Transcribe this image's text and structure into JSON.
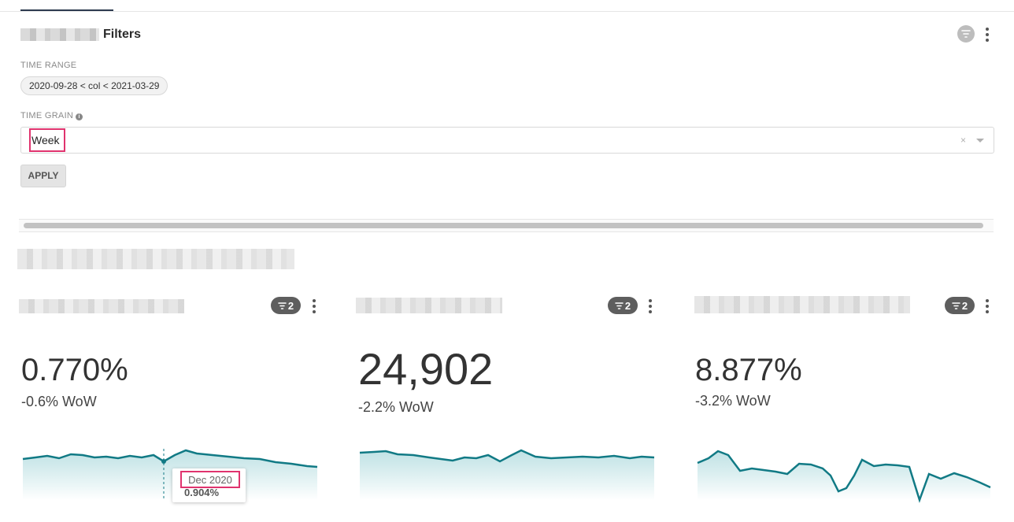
{
  "filters": {
    "title": "Filters",
    "time_range_label": "TIME RANGE",
    "time_range_value": "2020-09-28 < col < 2021-03-29",
    "time_grain_label": "TIME GRAIN",
    "time_grain_value": "Week",
    "clear_symbol": "×",
    "apply_label": "APPLY"
  },
  "cards": [
    {
      "filter_count": "2",
      "value": "0.770%",
      "delta": "-0.6% WoW",
      "tooltip": {
        "date": "Dec 2020",
        "value": "0.904%"
      }
    },
    {
      "filter_count": "2",
      "value": "24,902",
      "delta": "-2.2% WoW"
    },
    {
      "filter_count": "2",
      "value": "8.877%",
      "delta": "-3.2% WoW"
    }
  ],
  "colors": {
    "accent": "#117a85",
    "area_fill": "#d0e9eb",
    "highlight": "#e0336e"
  },
  "icons": [
    "filter-icon",
    "more-vertical-icon",
    "info-icon",
    "clear-icon",
    "chevron-down-icon"
  ]
}
